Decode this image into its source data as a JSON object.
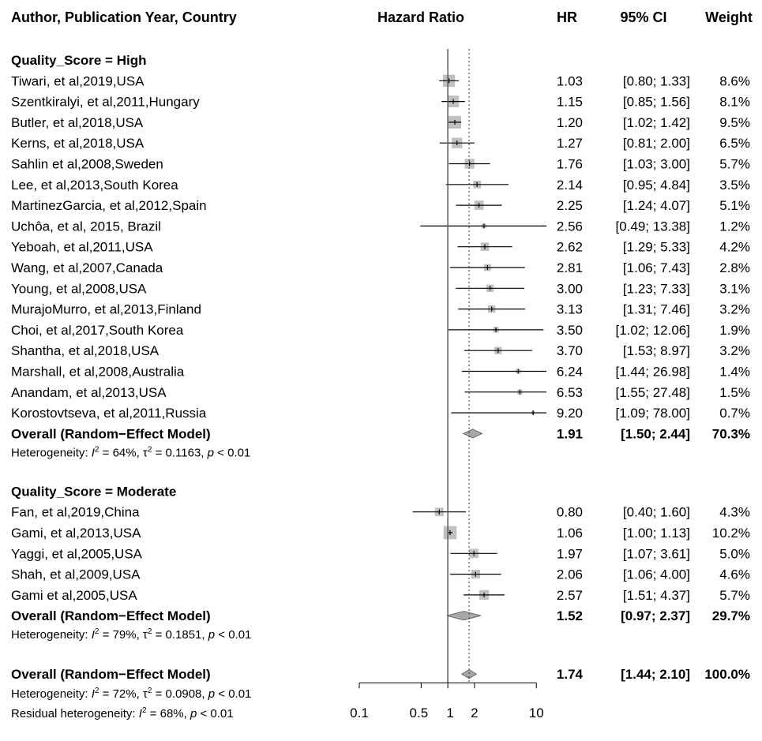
{
  "headers": {
    "study": "Author, Publication Year, Country",
    "plot": "Hazard Ratio",
    "hr": "HR",
    "ci": "95% CI",
    "weight": "Weight"
  },
  "chart_data": {
    "type": "forest",
    "x_scale": "log",
    "xlim": [
      0.1,
      13
    ],
    "x_ticks": [
      0.1,
      0.5,
      1,
      2,
      10
    ],
    "x_tick_labels": [
      "0.1",
      "0.5",
      "1",
      "2",
      "10"
    ],
    "reference_line": 1,
    "overall_line": 1.74,
    "groups": [
      {
        "label": "Quality_Score = High",
        "studies": [
          {
            "study": "Tiwari, et al,2019,USA",
            "hr": 1.03,
            "lo": 0.8,
            "hi": 1.33,
            "weight": 8.6,
            "hr_text": "1.03",
            "ci_text": "[0.80;  1.33]",
            "weight_text": "8.6%"
          },
          {
            "study": "Szentkiralyi, et al,2011,Hungary",
            "hr": 1.15,
            "lo": 0.85,
            "hi": 1.56,
            "weight": 8.1,
            "hr_text": "1.15",
            "ci_text": "[0.85;  1.56]",
            "weight_text": "8.1%"
          },
          {
            "study": "Butler, et al,2018,USA",
            "hr": 1.2,
            "lo": 1.02,
            "hi": 1.42,
            "weight": 9.5,
            "hr_text": "1.20",
            "ci_text": "[1.02;  1.42]",
            "weight_text": "9.5%"
          },
          {
            "study": "Kerns, et al,2018,USA",
            "hr": 1.27,
            "lo": 0.81,
            "hi": 2.0,
            "weight": 6.5,
            "hr_text": "1.27",
            "ci_text": "[0.81;  2.00]",
            "weight_text": "6.5%"
          },
          {
            "study": "Sahlin et al,2008,Sweden",
            "hr": 1.76,
            "lo": 1.03,
            "hi": 3.0,
            "weight": 5.7,
            "hr_text": "1.76",
            "ci_text": "[1.03;  3.00]",
            "weight_text": "5.7%"
          },
          {
            "study": "Lee, et al,2013,South Korea",
            "hr": 2.14,
            "lo": 0.95,
            "hi": 4.84,
            "weight": 3.5,
            "hr_text": "2.14",
            "ci_text": "[0.95;  4.84]",
            "weight_text": "3.5%"
          },
          {
            "study": "MartinezGarcia, et al,2012,Spain",
            "hr": 2.25,
            "lo": 1.24,
            "hi": 4.07,
            "weight": 5.1,
            "hr_text": "2.25",
            "ci_text": "[1.24;  4.07]",
            "weight_text": "5.1%"
          },
          {
            "study": "Uchôa, et al, 2015, Brazil",
            "hr": 2.56,
            "lo": 0.49,
            "hi": 13.38,
            "weight": 1.2,
            "hr_text": "2.56",
            "ci_text": "[0.49; 13.38]",
            "weight_text": "1.2%"
          },
          {
            "study": "Yeboah, et al,2011,USA",
            "hr": 2.62,
            "lo": 1.29,
            "hi": 5.33,
            "weight": 4.2,
            "hr_text": "2.62",
            "ci_text": "[1.29;  5.33]",
            "weight_text": "4.2%"
          },
          {
            "study": "Wang, et al,2007,Canada",
            "hr": 2.81,
            "lo": 1.06,
            "hi": 7.43,
            "weight": 2.8,
            "hr_text": "2.81",
            "ci_text": "[1.06;  7.43]",
            "weight_text": "2.8%"
          },
          {
            "study": "Young, et al,2008,USA",
            "hr": 3.0,
            "lo": 1.23,
            "hi": 7.33,
            "weight": 3.1,
            "hr_text": "3.00",
            "ci_text": "[1.23;  7.33]",
            "weight_text": "3.1%"
          },
          {
            "study": "MurajoMurro, et al,2013,Finland",
            "hr": 3.13,
            "lo": 1.31,
            "hi": 7.46,
            "weight": 3.2,
            "hr_text": "3.13",
            "ci_text": "[1.31;  7.46]",
            "weight_text": "3.2%"
          },
          {
            "study": "Choi, et al,2017,South Korea",
            "hr": 3.5,
            "lo": 1.02,
            "hi": 12.06,
            "weight": 1.9,
            "hr_text": "3.50",
            "ci_text": "[1.02; 12.06]",
            "weight_text": "1.9%"
          },
          {
            "study": "Shantha, et al,2018,USA",
            "hr": 3.7,
            "lo": 1.53,
            "hi": 8.97,
            "weight": 3.2,
            "hr_text": "3.70",
            "ci_text": "[1.53;  8.97]",
            "weight_text": "3.2%"
          },
          {
            "study": "Marshall, et al,2008,Australia",
            "hr": 6.24,
            "lo": 1.44,
            "hi": 26.98,
            "weight": 1.4,
            "hr_text": "6.24",
            "ci_text": "[1.44; 26.98]",
            "weight_text": "1.4%"
          },
          {
            "study": "Anandam, et al,2013,USA",
            "hr": 6.53,
            "lo": 1.55,
            "hi": 27.48,
            "weight": 1.5,
            "hr_text": "6.53",
            "ci_text": "[1.55; 27.48]",
            "weight_text": "1.5%"
          },
          {
            "study": "Korostovtseva, et al,2011,Russia",
            "hr": 9.2,
            "lo": 1.09,
            "hi": 78.0,
            "weight": 0.7,
            "hr_text": "9.20",
            "ci_text": "[1.09; 78.00]",
            "weight_text": "0.7%"
          }
        ],
        "overall": {
          "label": "Overall (Random−Effect Model)",
          "hr": 1.91,
          "lo": 1.5,
          "hi": 2.44,
          "weight": 70.3,
          "hr_text": "1.91",
          "ci_text": "[1.50;  2.44]",
          "weight_text": "70.3%"
        },
        "heterogeneity": {
          "prefix": "Heterogeneity: ",
          "i2": "64%",
          "tau2": "0.1163",
          "p": "< 0.01"
        }
      },
      {
        "label": "Quality_Score = Moderate",
        "studies": [
          {
            "study": "Fan, et al,2019,China",
            "hr": 0.8,
            "lo": 0.4,
            "hi": 1.6,
            "weight": 4.3,
            "hr_text": "0.80",
            "ci_text": "[0.40;  1.60]",
            "weight_text": "4.3%"
          },
          {
            "study": "Gami, et al,2013,USA",
            "hr": 1.06,
            "lo": 1.0,
            "hi": 1.13,
            "weight": 10.2,
            "hr_text": "1.06",
            "ci_text": "[1.00;  1.13]",
            "weight_text": "10.2%"
          },
          {
            "study": "Yaggi, et al,2005,USA",
            "hr": 1.97,
            "lo": 1.07,
            "hi": 3.61,
            "weight": 5.0,
            "hr_text": "1.97",
            "ci_text": "[1.07;  3.61]",
            "weight_text": "5.0%"
          },
          {
            "study": "Shah, et al,2009,USA",
            "hr": 2.06,
            "lo": 1.06,
            "hi": 4.0,
            "weight": 4.6,
            "hr_text": "2.06",
            "ci_text": "[1.06;  4.00]",
            "weight_text": "4.6%"
          },
          {
            "study": "Gami et al,2005,USA",
            "hr": 2.57,
            "lo": 1.51,
            "hi": 4.37,
            "weight": 5.7,
            "hr_text": "2.57",
            "ci_text": "[1.51;  4.37]",
            "weight_text": "5.7%"
          }
        ],
        "overall": {
          "label": "Overall (Random−Effect Model)",
          "hr": 1.52,
          "lo": 0.97,
          "hi": 2.37,
          "weight": 29.7,
          "hr_text": "1.52",
          "ci_text": "[0.97;  2.37]",
          "weight_text": "29.7%"
        },
        "heterogeneity": {
          "prefix": "Heterogeneity: ",
          "i2": "79%",
          "tau2": "0.1851",
          "p": "< 0.01"
        }
      }
    ],
    "overall": {
      "label": "Overall (Random−Effect Model)",
      "hr": 1.74,
      "lo": 1.44,
      "hi": 2.1,
      "weight": 100.0,
      "hr_text": "1.74",
      "ci_text": "[1.44;  2.10]",
      "weight_text": "100.0%"
    },
    "overall_heterogeneity": {
      "prefix": "Heterogeneity: ",
      "i2": "72%",
      "tau2": "0.0908",
      "p": "< 0.01"
    },
    "residual_heterogeneity": {
      "prefix": "Residual heterogeneity: ",
      "i2": "68%",
      "p": "< 0.01"
    },
    "colors": {
      "square": "#c0c0c0",
      "diamond": "#a8a8a8",
      "line": "#000000",
      "ref_line": "#555555"
    }
  }
}
